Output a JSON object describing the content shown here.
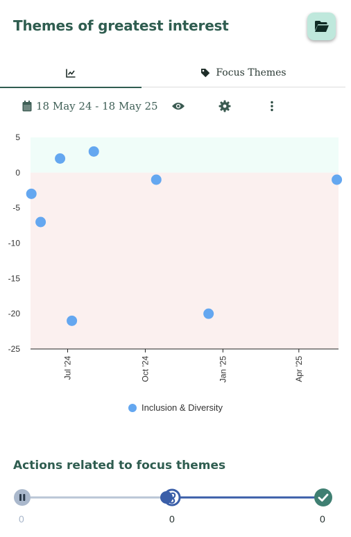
{
  "header": {
    "title": "Themes of greatest interest",
    "folder_icon": "folder-open-icon"
  },
  "tabs": [
    {
      "icon": "chart-line-icon",
      "label": ""
    },
    {
      "icon": "tag-icon",
      "label": "Focus Themes"
    }
  ],
  "toolbar": {
    "date_range": "18 May 24 - 18 May 25",
    "icons": [
      "calendar-icon",
      "eye-icon",
      "gear-icon",
      "more-vertical-icon"
    ]
  },
  "chart_data": {
    "type": "scatter",
    "ylim": [
      -25,
      5
    ],
    "yticks": [
      "5",
      "0",
      "-5",
      "-10",
      "-15",
      "-20",
      "-25"
    ],
    "xticks": [
      "Jul '24",
      "Oct '24",
      "Jan '25",
      "Apr '25"
    ],
    "bands": [
      {
        "from": 0,
        "to": 5,
        "color": "#f0fdf9"
      },
      {
        "from": -25,
        "to": 0,
        "color": "#fbf0ef"
      }
    ],
    "series": [
      {
        "name": "Inclusion & Diversity",
        "color": "#64a7f0",
        "points": [
          {
            "x": "2024-05-19",
            "y": -3
          },
          {
            "x": "2024-05-30",
            "y": -7
          },
          {
            "x": "2024-06-22",
            "y": 2
          },
          {
            "x": "2024-07-06",
            "y": -21
          },
          {
            "x": "2024-08-01",
            "y": 3
          },
          {
            "x": "2024-10-14",
            "y": -1
          },
          {
            "x": "2024-12-15",
            "y": -20
          },
          {
            "x": "2025-05-16",
            "y": -1
          }
        ]
      }
    ]
  },
  "legend": {
    "label": "Inclusion & Diversity"
  },
  "actions": {
    "title": "Actions related to focus themes",
    "paused_count": "0",
    "in_progress_count": "0",
    "done_count": "0",
    "colors": {
      "paused": "#aab8cc",
      "in_progress": "#3a5ea8",
      "done": "#3f7f72"
    }
  }
}
